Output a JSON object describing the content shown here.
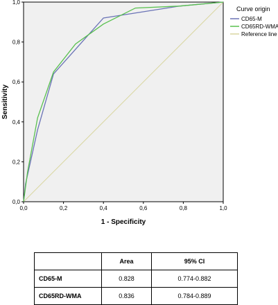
{
  "chart_data": {
    "type": "line",
    "xlabel": "1 - Specificity",
    "ylabel": "Sensitivity",
    "xlim": [
      0,
      1
    ],
    "ylim": [
      0,
      1
    ],
    "xticks": [
      "0,0",
      "0,2",
      "0,4",
      "0,6",
      "0,8",
      "1,0"
    ],
    "yticks": [
      "0,0",
      "0,2",
      "0,4",
      "0,6",
      "0,8",
      "1,0"
    ],
    "grid": false,
    "legend_title": "Curve origin",
    "legend_position": "right",
    "series": [
      {
        "name": "CD65-M",
        "color": "#6a73b6",
        "x": [
          0,
          0.01,
          0.07,
          0.15,
          0.4,
          0.78,
          1.0
        ],
        "y": [
          0,
          0.09,
          0.36,
          0.64,
          0.92,
          0.98,
          1.0
        ]
      },
      {
        "name": "CD65RD-WMA",
        "color": "#58c04e",
        "x": [
          0,
          0.02,
          0.07,
          0.15,
          0.26,
          0.4,
          0.56,
          0.78,
          1.0
        ],
        "y": [
          0,
          0.15,
          0.42,
          0.65,
          0.79,
          0.89,
          0.97,
          0.98,
          1.0
        ]
      },
      {
        "name": "Reference line",
        "color": "#d9d6a0",
        "x": [
          0,
          1
        ],
        "y": [
          0,
          1
        ]
      }
    ]
  },
  "table": {
    "headers": [
      "",
      "Area",
      "95% CI"
    ],
    "rows": [
      {
        "name": "CD65-M",
        "area": "0.828",
        "ci": "0.774-0.882"
      },
      {
        "name": "CD65RD-WMA",
        "area": "0.836",
        "ci": "0.784-0.889"
      }
    ]
  }
}
